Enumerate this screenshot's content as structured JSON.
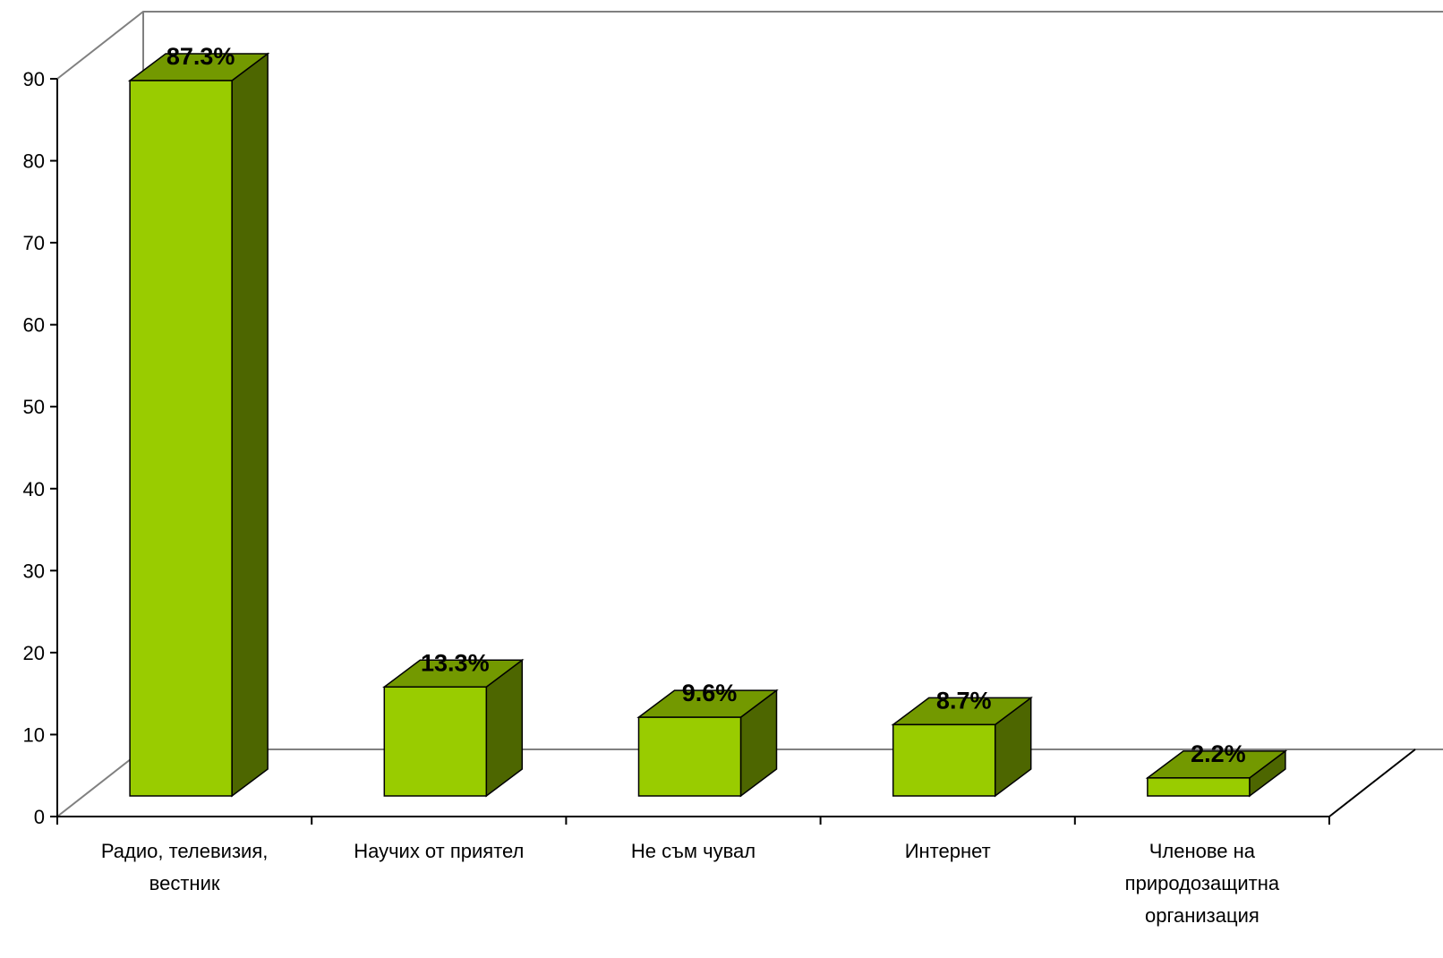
{
  "chart_data": {
    "type": "bar",
    "three_d": true,
    "categories": [
      [
        "Радио, телевизия,",
        "вестник"
      ],
      [
        "Научих от приятел"
      ],
      [
        "Не съм чувал"
      ],
      [
        "Интернет"
      ],
      [
        "Членове на",
        "природозащитна",
        "организация"
      ]
    ],
    "values": [
      87.3,
      13.3,
      9.6,
      8.7,
      2.2
    ],
    "data_labels": [
      "87.3%",
      "13.3%",
      "9.6%",
      "8.7%",
      "2.2%"
    ],
    "ylim": [
      0,
      90
    ],
    "yticks": [
      "0",
      "10",
      "20",
      "30",
      "40",
      "50",
      "60",
      "70",
      "80",
      "90"
    ],
    "grid": false,
    "legend": "none",
    "colors": {
      "bar_front": "#99cc00",
      "bar_top": "#739900",
      "bar_side": "#4d6600",
      "outline": "#000000",
      "wall": "#808080"
    }
  }
}
